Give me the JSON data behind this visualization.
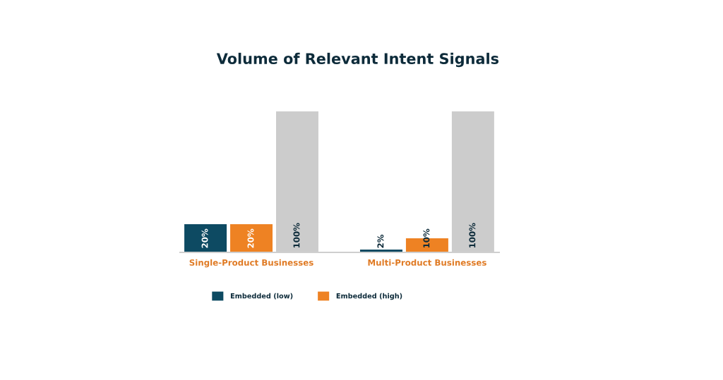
{
  "chart_data": {
    "type": "bar",
    "title": "Volume of Relevant Intent Signals",
    "categories": [
      "Single-Product Businesses",
      "Multi-Product Businesses"
    ],
    "series": [
      {
        "name": "Embedded (low)",
        "color": "#0d4a62",
        "values": [
          20,
          2
        ],
        "value_labels": [
          "20%",
          "2%"
        ]
      },
      {
        "name": "Embedded (high)",
        "color": "#ee8223",
        "values": [
          20,
          10
        ],
        "value_labels": [
          "20%",
          "10%"
        ]
      },
      {
        "color": "#cccccc",
        "values": [
          100,
          100
        ],
        "value_labels": [
          "100%",
          "100%"
        ]
      }
    ],
    "ylim": [
      0,
      100
    ],
    "legend": "bottom",
    "tick_labels": "x"
  }
}
